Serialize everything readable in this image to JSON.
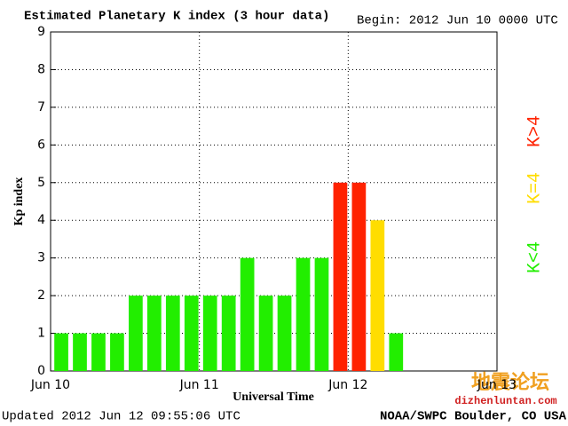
{
  "chart_data": {
    "type": "bar",
    "title": "Estimated Planetary K index (3 hour data)",
    "subtitle": "Begin:  2012 Jun 10 0000 UTC",
    "x_label": "Universal Time",
    "y_label": "Kp index",
    "x": [
      0,
      3,
      6,
      9,
      12,
      15,
      18,
      21,
      24,
      27,
      30,
      33,
      36,
      39,
      42,
      45,
      48,
      51,
      54
    ],
    "bar_width": 3,
    "values": [
      1,
      1,
      1,
      1,
      2,
      2,
      2,
      2,
      2,
      2,
      3,
      2,
      2,
      3,
      3,
      5,
      5,
      4,
      1
    ],
    "colors": [
      "#22ee00",
      "#22ee00",
      "#22ee00",
      "#22ee00",
      "#22ee00",
      "#22ee00",
      "#22ee00",
      "#22ee00",
      "#22ee00",
      "#22ee00",
      "#22ee00",
      "#22ee00",
      "#22ee00",
      "#22ee00",
      "#22ee00",
      "#ff2200",
      "#ff2200",
      "#ffdd00",
      "#22ee00"
    ],
    "xlim": [
      0,
      72
    ],
    "xticks": [
      {
        "value": 0,
        "label": "Jun 10"
      },
      {
        "value": 24,
        "label": "Jun 11"
      },
      {
        "value": 48,
        "label": "Jun 12"
      },
      {
        "value": 72,
        "label": "Jun 13"
      }
    ],
    "ylim": [
      0,
      9
    ],
    "yticks": [
      0,
      1,
      2,
      3,
      4,
      5,
      6,
      7,
      8,
      9
    ],
    "grid": true,
    "legend": [
      {
        "label": "K<4",
        "color": "#22ee00"
      },
      {
        "label": "K=4",
        "color": "#ffdd00"
      },
      {
        "label": "K>4",
        "color": "#ff2200"
      }
    ],
    "footer_left": "Updated 2012 Jun 12 09:55:06 UTC",
    "footer_right": "NOAA/SWPC Boulder, CO USA",
    "annotations": [
      "地震论坛",
      "dizhenluntan.com"
    ]
  }
}
